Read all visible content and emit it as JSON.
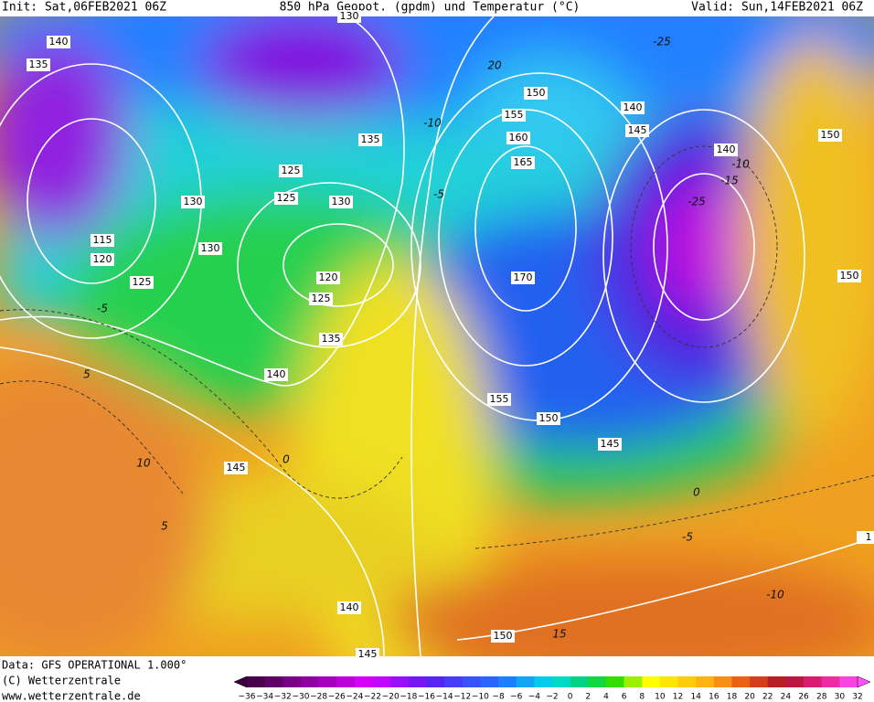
{
  "header": {
    "init": "Init: Sat,06FEB2021 06Z",
    "title": "850 hPa Geopot. (gpdm) und Temperatur (°C)",
    "valid": "Valid: Sun,14FEB2021 06Z"
  },
  "map": {
    "geopotential_labels": [
      "130",
      "140",
      "135",
      "150",
      "140",
      "155",
      "145",
      "150",
      "135",
      "160",
      "140",
      "165",
      "125",
      "130",
      "125",
      "130",
      "115",
      "130",
      "120",
      "150",
      "120",
      "125",
      "170",
      "125",
      "135",
      "140",
      "155",
      "150",
      "145",
      "145",
      "140",
      "150",
      "145",
      "1"
    ],
    "temperature_labels": [
      "-5",
      "5",
      "10",
      "5",
      "0",
      "-5",
      "-10",
      "-25",
      "-15",
      "-10",
      "-5",
      "-10",
      "15",
      "0",
      "20",
      "-25"
    ]
  },
  "footer": {
    "data": "Data: GFS OPERATIONAL 1.000°",
    "copyright": "(C) Wetterzentrale",
    "url": "www.wetterzentrale.de"
  },
  "colorbar": {
    "ticks": [
      "−36",
      "−34",
      "−32",
      "−30",
      "−28",
      "−26",
      "−24",
      "−22",
      "−20",
      "−18",
      "−16",
      "−14",
      "−12",
      "−10",
      "−8",
      "−6",
      "−4",
      "−2",
      "0",
      "2",
      "4",
      "6",
      "8",
      "10",
      "12",
      "14",
      "16",
      "18",
      "20",
      "22",
      "24",
      "26",
      "28",
      "30",
      "32"
    ]
  }
}
